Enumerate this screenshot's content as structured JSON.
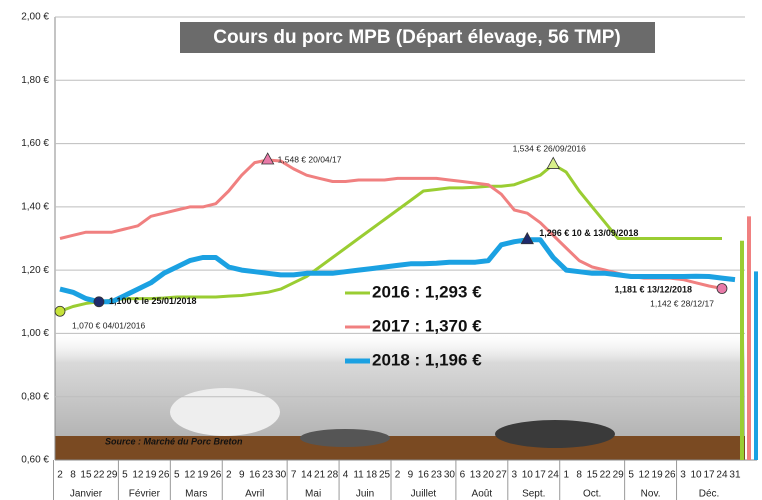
{
  "chart_data": {
    "type": "line",
    "title": "Cours du porc MPB (Départ élevage, 56 TMP)",
    "source": "Source : Marché du Porc Breton",
    "categories": [
      "2",
      "8",
      "15",
      "22",
      "29",
      "5",
      "12",
      "19",
      "26",
      "5",
      "12",
      "19",
      "26",
      "2",
      "9",
      "16",
      "23",
      "30",
      "7",
      "14",
      "21",
      "28",
      "4",
      "11",
      "18",
      "25",
      "2",
      "9",
      "16",
      "23",
      "30",
      "6",
      "13",
      "20",
      "27",
      "3",
      "10",
      "17",
      "24",
      "1",
      "8",
      "15",
      "22",
      "29",
      "5",
      "12",
      "19",
      "26",
      "3",
      "10",
      "17",
      "24",
      "31"
    ],
    "months": [
      "Janvier",
      "Février",
      "Mars",
      "Avril",
      "Mai",
      "Juin",
      "Juillet",
      "Août",
      "Sept.",
      "Oct.",
      "Nov.",
      "Déc."
    ],
    "ylim": [
      0.6,
      2.0
    ],
    "yticks": [
      {
        "value": 0.6,
        "label": "0,60 €"
      },
      {
        "value": 0.8,
        "label": "0,80 €"
      },
      {
        "value": 1.0,
        "label": "1,00 €"
      },
      {
        "value": 1.2,
        "label": "1,20 €"
      },
      {
        "value": 1.4,
        "label": "1,40 €"
      },
      {
        "value": 1.6,
        "label": "1,60 €"
      },
      {
        "value": 1.8,
        "label": "1,80 €"
      },
      {
        "value": 2.0,
        "label": "2,00 €"
      }
    ],
    "grid": true,
    "series": [
      {
        "name": "2016 : 1,293 €",
        "average": 1.293,
        "color": "#9acd32",
        "width": 3,
        "values": [
          1.07,
          1.085,
          1.095,
          1.1,
          1.105,
          1.11,
          1.11,
          1.11,
          1.112,
          1.115,
          1.115,
          1.115,
          1.115,
          1.118,
          1.12,
          1.125,
          1.13,
          1.14,
          1.16,
          1.18,
          1.21,
          1.24,
          1.27,
          1.3,
          1.33,
          1.36,
          1.39,
          1.42,
          1.45,
          1.455,
          1.46,
          1.46,
          1.462,
          1.465,
          1.465,
          1.47,
          1.485,
          1.5,
          1.534,
          1.51,
          1.45,
          1.4,
          1.35,
          1.3,
          1.3,
          1.3,
          1.3,
          1.3,
          1.3,
          1.3,
          1.3,
          1.3,
          null
        ],
        "annotations": [
          {
            "text": "1,070 € 04/01/2016",
            "value": 1.07,
            "marker": "circle",
            "marker_color": "#c6e23a"
          },
          {
            "text": "1,534 € 26/09/2016",
            "value": 1.534,
            "marker": "triangle",
            "marker_color": "#d8f08a"
          }
        ]
      },
      {
        "name": "2017 : 1,370 €",
        "average": 1.37,
        "color": "#f08080",
        "width": 3,
        "values": [
          1.3,
          1.31,
          1.32,
          1.32,
          1.32,
          1.33,
          1.34,
          1.37,
          1.38,
          1.39,
          1.4,
          1.4,
          1.41,
          1.45,
          1.5,
          1.54,
          1.548,
          1.545,
          1.52,
          1.5,
          1.49,
          1.48,
          1.48,
          1.485,
          1.485,
          1.485,
          1.49,
          1.49,
          1.49,
          1.49,
          1.485,
          1.48,
          1.475,
          1.47,
          1.44,
          1.39,
          1.38,
          1.35,
          1.31,
          1.27,
          1.23,
          1.21,
          1.2,
          1.19,
          1.18,
          1.175,
          1.175,
          1.175,
          1.17,
          1.16,
          1.15,
          1.142,
          null
        ],
        "annotations": [
          {
            "text": "1,548 € 20/04/17",
            "value": 1.548,
            "marker": "triangle",
            "marker_color": "#e87aa8"
          },
          {
            "text": "1,142 € 28/12/17",
            "value": 1.142,
            "marker": "circle",
            "marker_color": "#e87aa8"
          }
        ]
      },
      {
        "name": "2018 : 1,196 €",
        "average": 1.196,
        "color": "#1ba1e2",
        "width": 5,
        "values": [
          1.14,
          1.13,
          1.11,
          1.1,
          1.1,
          1.12,
          1.14,
          1.16,
          1.19,
          1.21,
          1.23,
          1.24,
          1.24,
          1.21,
          1.2,
          1.195,
          1.19,
          1.185,
          1.185,
          1.19,
          1.19,
          1.19,
          1.195,
          1.2,
          1.205,
          1.21,
          1.215,
          1.22,
          1.22,
          1.222,
          1.225,
          1.225,
          1.225,
          1.23,
          1.28,
          1.29,
          1.296,
          1.296,
          1.24,
          1.2,
          1.195,
          1.19,
          1.19,
          1.185,
          1.18,
          1.18,
          1.18,
          1.18,
          1.18,
          1.181,
          1.18,
          1.175,
          1.17
        ],
        "annotations": [
          {
            "text": "1,100 € le 25/01/2018",
            "value": 1.1,
            "marker": "circle",
            "marker_color": "#1f2a6b"
          },
          {
            "text": "1,296 € 10 & 13/09/2018",
            "value": 1.296,
            "marker": "triangle",
            "marker_color": "#1f2a6b"
          },
          {
            "text": "1,181 € 13/12/2018",
            "value": 1.181,
            "marker": "none",
            "marker_color": "#1f2a6b"
          }
        ]
      }
    ]
  }
}
